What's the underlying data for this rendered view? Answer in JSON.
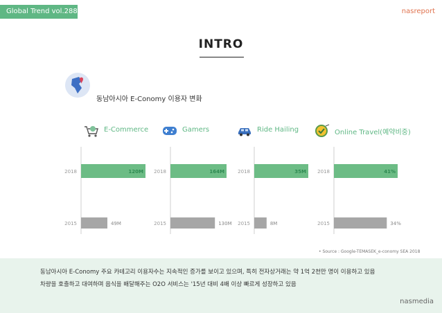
{
  "header": {
    "tag": "Global Trend vol.288",
    "brand": "nasreport"
  },
  "title": "INTRO",
  "subtitle": "동남아시아 E-Conomy 이용자 변화",
  "colors": {
    "accent": "#5fb784",
    "bar_2018": "#6cbc85",
    "bar_2015": "#a6a6a6",
    "brand": "#e0734f",
    "footer_bg": "#e8f3ec"
  },
  "categories": [
    {
      "label": "E-Commerce",
      "icon": "cart-icon"
    },
    {
      "label": "Gamers",
      "icon": "gamepad-icon"
    },
    {
      "label": "Ride Hailing",
      "icon": "car-icon"
    },
    {
      "label": "Online Travel(예약비중)",
      "icon": "badge-icon"
    }
  ],
  "chart_data": {
    "type": "bar",
    "orientation": "horizontal",
    "years": [
      "2018",
      "2015"
    ],
    "panels": [
      {
        "category": "E-Commerce",
        "values": [
          120,
          49
        ],
        "labels": [
          "120M",
          "49M"
        ]
      },
      {
        "category": "Gamers",
        "values": [
          164,
          130
        ],
        "labels": [
          "164M",
          "130M"
        ]
      },
      {
        "category": "Ride Hailing",
        "values": [
          35,
          8
        ],
        "labels": [
          "35M",
          "8M"
        ]
      },
      {
        "category": "Online Travel(예약비중)",
        "values": [
          41,
          34
        ],
        "labels": [
          "41%",
          "34%"
        ]
      }
    ]
  },
  "source": "• Source : Google-TEMASEK_e-conomy SEA 2018",
  "bullets": [
    "동남아시아 E-Conomy 주요 카테고리 이용자수는 지속적인 증가를 보이고 있으며, 특히 전자상거래는 약 1억 2천만 명이 이용하고 있음",
    "차량을 호출하고 대여하며 음식을 배달해주는 O2O 서비스는 '15년 대비 4배 이상 빠르게 성장하고 있음"
  ],
  "footer_logo": "nasmedia"
}
